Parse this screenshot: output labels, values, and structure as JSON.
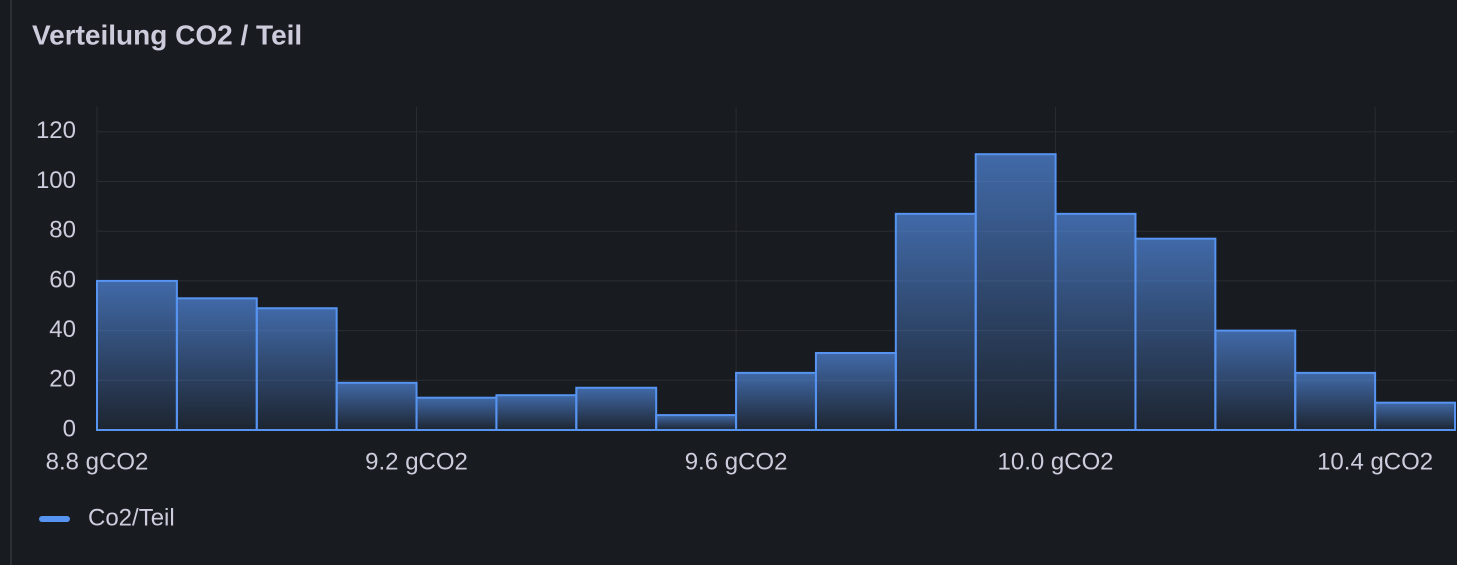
{
  "chart_data": {
    "type": "histogram",
    "title": "Verteilung CO2 / Teil",
    "bins": [
      8.8,
      8.9,
      9.0,
      9.1,
      9.2,
      9.3,
      9.4,
      9.5,
      9.6,
      9.7,
      9.8,
      9.9,
      10.0,
      10.1,
      10.2,
      10.3,
      10.4,
      10.5
    ],
    "series": [
      {
        "name": "Co2/Teil",
        "color": "#5794f2",
        "values": [
          60,
          53,
          49,
          19,
          13,
          14,
          17,
          6,
          23,
          31,
          87,
          111,
          87,
          77,
          40,
          23,
          11
        ]
      }
    ],
    "xlim": [
      8.8,
      10.5
    ],
    "xticks": [
      {
        "value": 8.8,
        "label": "8.8 gCO2"
      },
      {
        "value": 9.2,
        "label": "9.2 gCO2"
      },
      {
        "value": 9.6,
        "label": "9.6 gCO2"
      },
      {
        "value": 10.0,
        "label": "10.0 gCO2"
      },
      {
        "value": 10.4,
        "label": "10.4 gCO2"
      }
    ],
    "ylim": [
      0,
      130
    ],
    "yticks": [
      0,
      20,
      40,
      60,
      80,
      100,
      120
    ],
    "grid": true,
    "legend": "bottom-left"
  }
}
